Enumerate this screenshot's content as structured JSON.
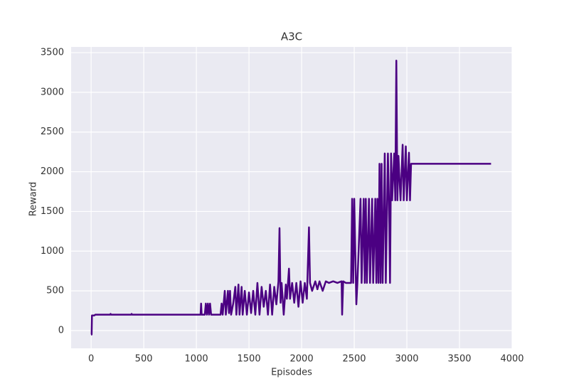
{
  "chart_data": {
    "type": "line",
    "title": "A3C",
    "x_label": "Episodes",
    "y_label": "Reward",
    "xlim": [
      -190,
      4000
    ],
    "ylim": [
      -224,
      3572
    ],
    "xticks": [
      0,
      500,
      1000,
      1500,
      2000,
      2500,
      3000,
      3500,
      4000
    ],
    "yticks": [
      0,
      500,
      1000,
      1500,
      2000,
      2500,
      3000,
      3500
    ],
    "grid": true,
    "series": [
      {
        "color": "#4b0082",
        "x": [
          0,
          5,
          8,
          30,
          40,
          180,
          185,
          190,
          380,
          385,
          390,
          1040,
          1045,
          1050,
          1080,
          1090,
          1100,
          1110,
          1120,
          1130,
          1140,
          1200,
          1230,
          1240,
          1250,
          1270,
          1280,
          1300,
          1310,
          1320,
          1330,
          1350,
          1370,
          1380,
          1400,
          1410,
          1430,
          1440,
          1460,
          1480,
          1500,
          1520,
          1540,
          1560,
          1580,
          1600,
          1620,
          1640,
          1660,
          1680,
          1700,
          1720,
          1740,
          1760,
          1780,
          1790,
          1800,
          1810,
          1830,
          1850,
          1860,
          1880,
          1890,
          1910,
          1930,
          1950,
          1970,
          1990,
          2010,
          2030,
          2050,
          2070,
          2080,
          2100,
          2130,
          2150,
          2170,
          2200,
          2230,
          2260,
          2300,
          2340,
          2380,
          2385,
          2395,
          2420,
          2470,
          2480,
          2490,
          2500,
          2520,
          2530,
          2560,
          2570,
          2590,
          2600,
          2610,
          2620,
          2640,
          2650,
          2670,
          2680,
          2700,
          2710,
          2720,
          2730,
          2740,
          2750,
          2760,
          2770,
          2790,
          2800,
          2820,
          2830,
          2840,
          2850,
          2860,
          2880,
          2890,
          2900,
          2910,
          2920,
          2940,
          2960,
          2970,
          2990,
          3000,
          3020,
          3030,
          3040,
          3100,
          3800
        ],
        "values": [
          -50,
          -50,
          190,
          190,
          200,
          200,
          210,
          200,
          200,
          210,
          200,
          200,
          340,
          200,
          200,
          340,
          200,
          340,
          200,
          340,
          200,
          200,
          200,
          340,
          200,
          500,
          200,
          500,
          220,
          500,
          200,
          340,
          550,
          200,
          580,
          200,
          550,
          200,
          500,
          200,
          480,
          220,
          500,
          200,
          600,
          200,
          550,
          300,
          500,
          200,
          580,
          200,
          550,
          330,
          620,
          1290,
          350,
          600,
          200,
          580,
          400,
          780,
          400,
          600,
          350,
          600,
          300,
          620,
          350,
          600,
          400,
          1300,
          600,
          500,
          620,
          520,
          620,
          500,
          620,
          600,
          620,
          600,
          620,
          200,
          620,
          600,
          600,
          1660,
          600,
          1660,
          330,
          600,
          1660,
          600,
          1660,
          600,
          1660,
          600,
          1660,
          600,
          1660,
          600,
          1660,
          600,
          1660,
          600,
          2100,
          600,
          2100,
          600,
          2230,
          600,
          2230,
          1640,
          600,
          2230,
          1640,
          2230,
          1640,
          3400,
          1640,
          2200,
          1640,
          2340,
          1640,
          2320,
          1640,
          2240,
          1640,
          2100,
          2100,
          2100
        ]
      }
    ]
  }
}
